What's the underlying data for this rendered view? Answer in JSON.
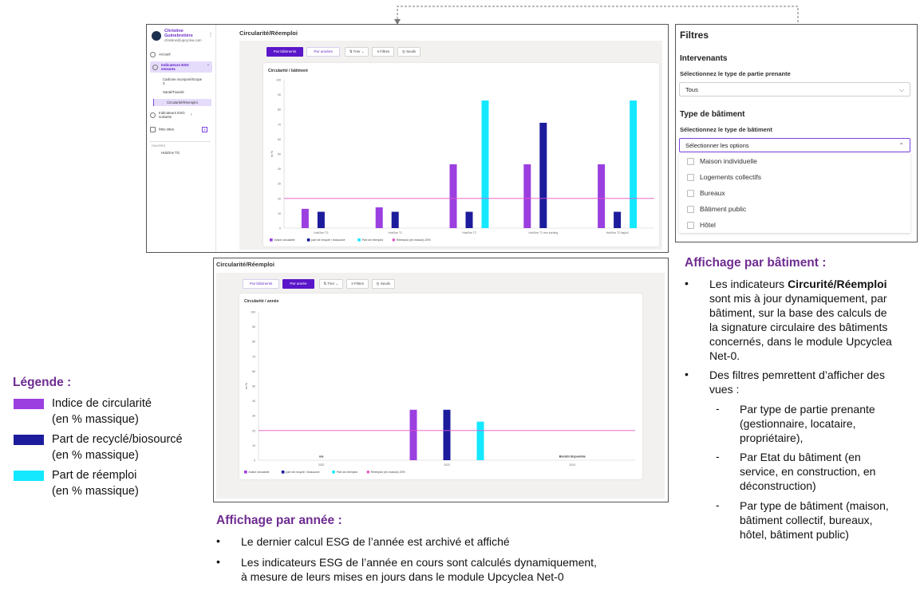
{
  "top_screen": {
    "user": {
      "name": "Christine Guinebretière",
      "email": "christine@upcyclea.com"
    },
    "nav": [
      {
        "label": "Accueil"
      },
      {
        "label": "Indicateurs ESG entrants"
      },
      {
        "label": "Indicateurs ESG sortants"
      },
      {
        "label": "Mes sites",
        "badge": "3"
      }
    ],
    "subnav": [
      "Carbone incorporé/Scope 3",
      "Santé/Toxicité",
      "Circularité/Réemploi"
    ],
    "favorites_label": "FAVORIS",
    "favorite_item": "HubOne TG",
    "page_title": "Circularité/Réemploi",
    "tabs": [
      "Par bâtiments",
      "Par années"
    ],
    "tools": [
      "Trier",
      "Filtres",
      "Seuils"
    ],
    "chart_title": "Circularité / bâtiment"
  },
  "bottom_screen": {
    "page_title": "Circularité/Réemploi",
    "tabs": [
      "Par bâtiments",
      "Par année"
    ],
    "tools": [
      "Trier",
      "Filtres",
      "Seuils"
    ],
    "chart_title": "Circularité / année"
  },
  "filters": {
    "title": "Filtres",
    "section1": "Intervenants",
    "label1": "Sélectionnez le type de partie prenante",
    "value1": "Tous",
    "section2": "Type de bâtiment",
    "label2": "Sélectionnez le type de bâtiment",
    "placeholder2": "Sélectionner les options",
    "options": [
      "Maison individuelle",
      "Logements collectifs",
      "Bureaux",
      "Bâtiment public",
      "Hôtel"
    ]
  },
  "legend": {
    "title": "Légende :",
    "items": [
      {
        "line1": "Indice de circularité",
        "line2": "(en % massique)",
        "color": "#9b3fe0"
      },
      {
        "line1": "Part de recyclé/biosourcé",
        "line2": "(en % massique)",
        "color": "#1c1c9c"
      },
      {
        "line1": "Part de réemploi",
        "line2": "(en % massique)",
        "color": "#14e8ff"
      }
    ]
  },
  "annotation_building": {
    "title": "Affichage par bâtiment :",
    "b1_pre": "Les indicateurs ",
    "b1_bold": "Circurité/Réemploi",
    "b1_line1_post": "",
    "b1_lines": [
      "sont mis à jour dynamiquement, par",
      "bâtiment, sur la base des calculs de",
      "la signature circulaire des bâtiments",
      "concernés, dans le module Upcyclea",
      "Net-0."
    ],
    "b2_lines": [
      "Des filtres pemrettent d’afficher des",
      "vues :"
    ],
    "subs": [
      [
        "Par type de partie prenante",
        "(gestionnaire, locataire,",
        "propriétaire),"
      ],
      [
        "Par Etat du bâtiment (en",
        "service, en construction, en",
        "déconstruction)"
      ],
      [
        "Par type de bâtiment (maison,",
        "bâtiment collectif, bureaux,",
        "hôtel, bâtiment public)"
      ]
    ]
  },
  "annotation_year": {
    "title": "Affichage par année :",
    "b1": "Le dernier calcul ESG de l’année est archivé et affiché",
    "b2_lines": [
      "Les indicateurs ESG de l’année en cours sont calculés dynamiquement,",
      "à mesure de leurs mises en jours dans le module Upcyclea Net-0"
    ]
  },
  "chart_data": [
    {
      "type": "bar",
      "title": "Circularité / bâtiment",
      "ylabel": "en %",
      "ylim": [
        0,
        100
      ],
      "yticks": [
        0,
        10,
        20,
        30,
        40,
        50,
        60,
        70,
        80,
        90,
        100
      ],
      "categories": [
        "HubOne TG",
        "HubOne T1",
        "HubOne T2",
        "HubOne T2 rem bording",
        "HubOne T2 Napoli"
      ],
      "series": [
        {
          "name": "Indice circularité",
          "color": "#9b3fe0",
          "values": [
            13,
            14,
            43,
            43,
            43
          ]
        },
        {
          "name": "part de recyclé / biosourcé",
          "color": "#1c1c9c",
          "values": [
            11,
            11,
            11,
            71,
            11
          ]
        },
        {
          "name": "Part de réemploi",
          "color": "#14e8ff",
          "values": [
            0,
            0,
            86,
            0,
            86
          ]
        }
      ],
      "threshold": {
        "name": "Réemploi (en massic) 20%",
        "value": 20,
        "color": "#e455c8"
      },
      "legend": [
        "Indice circularité",
        "part de recyclé / biosourcé",
        "Part de réemploi",
        "Réemploi (en massic) 20%"
      ]
    },
    {
      "type": "bar",
      "title": "Circularité / année",
      "ylabel": "en %",
      "ylim": [
        0,
        100
      ],
      "yticks": [
        0,
        10,
        20,
        30,
        40,
        50,
        60,
        70,
        80,
        90,
        100
      ],
      "categories": [
        "2022",
        "2023",
        "2024"
      ],
      "category_notes": [
        "n/a",
        "",
        "Bientôt disponible"
      ],
      "series": [
        {
          "name": "Indice circularité",
          "color": "#9b3fe0",
          "values": [
            0,
            34,
            0
          ]
        },
        {
          "name": "part de recyclé / biosourcé",
          "color": "#1c1c9c",
          "values": [
            0,
            34,
            0
          ]
        },
        {
          "name": "Part de réemploi",
          "color": "#14e8ff",
          "values": [
            0,
            26,
            0
          ]
        }
      ],
      "threshold": {
        "name": "Réemploi (en massic) 20%",
        "value": 20,
        "color": "#e455c8"
      },
      "legend": [
        "Indice circularité",
        "part de recyclé / biosourcé",
        "Part de réemploi",
        "Réemploi (en massic) 20%"
      ]
    }
  ]
}
